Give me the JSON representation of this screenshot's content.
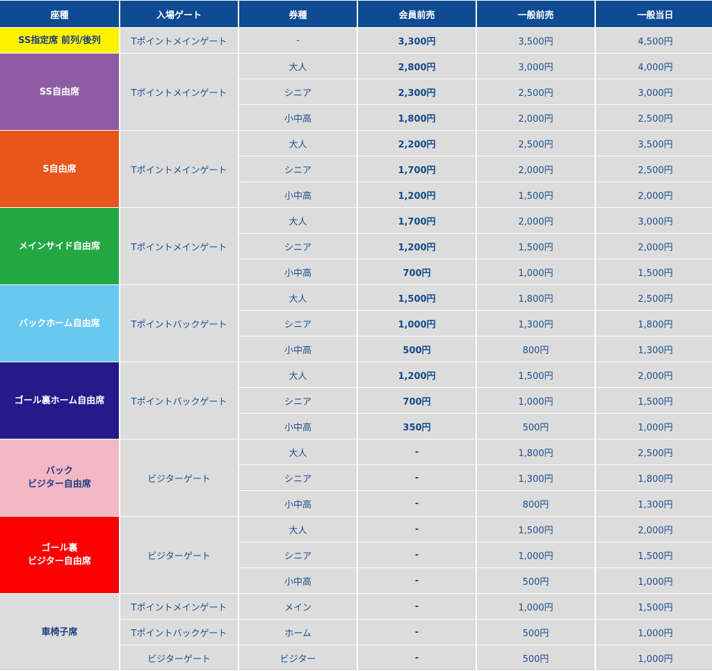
{
  "headers": [
    "座種",
    "入場ゲート",
    "券種",
    "会員前売",
    "一般前売",
    "一般当日"
  ],
  "groups": [
    {
      "seat": "SS指定席 前列/後列",
      "color": "#fff200",
      "rows": [
        {
          "gate": "Tポイントメインゲート",
          "type": "-",
          "member": "3,300円",
          "general": "3,500円",
          "sameday": "4,500円"
        }
      ]
    },
    {
      "seat": "SS自由席",
      "color": "#8e5ca4",
      "gate": "Tポイントメインゲート",
      "rows": [
        {
          "type": "大人",
          "member": "2,800円",
          "general": "3,000円",
          "sameday": "4,000円"
        },
        {
          "type": "シニア",
          "member": "2,300円",
          "general": "2,500円",
          "sameday": "3,000円"
        },
        {
          "type": "小中高",
          "member": "1,800円",
          "general": "2,000円",
          "sameday": "2,500円"
        }
      ]
    },
    {
      "seat": "S自由席",
      "color": "#e8561c",
      "gate": "Tポイントメインゲート",
      "rows": [
        {
          "type": "大人",
          "member": "2,200円",
          "general": "2,500円",
          "sameday": "3,500円"
        },
        {
          "type": "シニア",
          "member": "1,700円",
          "general": "2,000円",
          "sameday": "2,500円"
        },
        {
          "type": "小中高",
          "member": "1,200円",
          "general": "1,500円",
          "sameday": "2,000円"
        }
      ]
    },
    {
      "seat": "メインサイド自由席",
      "color": "#22a743",
      "gate": "Tポイントメインゲート",
      "rows": [
        {
          "type": "大人",
          "member": "1,700円",
          "general": "2,000円",
          "sameday": "3,000円"
        },
        {
          "type": "シニア",
          "member": "1,200円",
          "general": "1,500円",
          "sameday": "2,000円"
        },
        {
          "type": "小中高",
          "member": "700円",
          "general": "1,000円",
          "sameday": "1,500円"
        }
      ]
    },
    {
      "seat": "バックホーム自由席",
      "color": "#67c8f0",
      "gate": "Tポイントバックゲート",
      "rows": [
        {
          "type": "大人",
          "member": "1,500円",
          "general": "1,800円",
          "sameday": "2,500円"
        },
        {
          "type": "シニア",
          "member": "1,000円",
          "general": "1,300円",
          "sameday": "1,800円"
        },
        {
          "type": "小中高",
          "member": "500円",
          "general": "800円",
          "sameday": "1,300円"
        }
      ]
    },
    {
      "seat": "ゴール裏ホーム自由席",
      "color": "#241a8a",
      "gate": "Tポイントバックゲート",
      "rows": [
        {
          "type": "大人",
          "member": "1,200円",
          "general": "1,500円",
          "sameday": "2,000円"
        },
        {
          "type": "シニア",
          "member": "700円",
          "general": "1,000円",
          "sameday": "1,500円"
        },
        {
          "type": "小中高",
          "member": "350円",
          "general": "500円",
          "sameday": "1,000円"
        }
      ]
    },
    {
      "seat": "バック\nビジター自由席",
      "color": "#f4b7c4",
      "gate": "ビジターゲート",
      "rows": [
        {
          "type": "大人",
          "member": "-",
          "general": "1,800円",
          "sameday": "2,500円"
        },
        {
          "type": "シニア",
          "member": "-",
          "general": "1,300円",
          "sameday": "1,800円"
        },
        {
          "type": "小中高",
          "member": "-",
          "general": "800円",
          "sameday": "1,300円"
        }
      ]
    },
    {
      "seat": "ゴール裏\nビジター自由席",
      "color": "#fa0000",
      "gate": "ビジターゲート",
      "rows": [
        {
          "type": "大人",
          "member": "-",
          "general": "1,500円",
          "sameday": "2,000円"
        },
        {
          "type": "シニア",
          "member": "-",
          "general": "1,000円",
          "sameday": "1,500円"
        },
        {
          "type": "小中高",
          "member": "-",
          "general": "500円",
          "sameday": "1,000円"
        }
      ]
    },
    {
      "seat": "車椅子席",
      "color": "#dcdcdc",
      "rows": [
        {
          "gate": "Tポイントメインゲート",
          "type": "メイン",
          "member": "-",
          "general": "1,000円",
          "sameday": "1,500円"
        },
        {
          "gate": "Tポイントバックゲート",
          "type": "ホーム",
          "member": "-",
          "general": "500円",
          "sameday": "1,000円"
        },
        {
          "gate": "ビジターゲート",
          "type": "ビジター",
          "member": "-",
          "general": "500円",
          "sameday": "1,000円"
        }
      ]
    }
  ]
}
